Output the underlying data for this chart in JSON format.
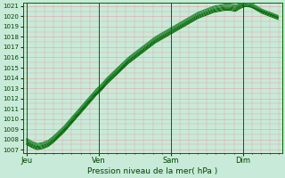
{
  "bg_color": "#c8ead8",
  "grid_color": "#e8a0a8",
  "line_color": "#006600",
  "line_color2": "#228833",
  "ylabel_color": "#004400",
  "xlabel_color": "#004400",
  "xlabel": "Pression niveau de la mer( hPa )",
  "yticks": [
    1007,
    1008,
    1009,
    1010,
    1011,
    1012,
    1013,
    1014,
    1015,
    1016,
    1017,
    1018,
    1019,
    1020,
    1021
  ],
  "ylim": [
    1006.7,
    1021.3
  ],
  "xtick_labels": [
    "Jeu",
    "Ven",
    "Sam",
    "Dim"
  ],
  "xtick_positions": [
    0,
    96,
    192,
    288
  ],
  "xlim": [
    -5,
    340
  ],
  "day_vlines": [
    0,
    96,
    192,
    288
  ],
  "lines": [
    [
      1007.8,
      1007.5,
      1007.3,
      1007.4,
      1007.6,
      1008.0,
      1008.5,
      1009.0,
      1009.6,
      1010.2,
      1010.8,
      1011.4,
      1012.0,
      1012.6,
      1013.1,
      1013.7,
      1014.2,
      1014.7,
      1015.2,
      1015.7,
      1016.1,
      1016.5,
      1016.9,
      1017.3,
      1017.7,
      1018.0,
      1018.3,
      1018.6,
      1018.9,
      1019.2,
      1019.5,
      1019.8,
      1020.1,
      1020.3,
      1020.5,
      1020.7,
      1020.8,
      1020.9,
      1020.9,
      1020.8,
      1021.1,
      1021.2,
      1021.1,
      1020.8,
      1020.5,
      1020.3,
      1020.1,
      1019.9
    ],
    [
      1007.9,
      1007.6,
      1007.4,
      1007.5,
      1007.7,
      1008.1,
      1008.6,
      1009.1,
      1009.7,
      1010.3,
      1010.9,
      1011.5,
      1012.1,
      1012.7,
      1013.2,
      1013.8,
      1014.3,
      1014.8,
      1015.3,
      1015.8,
      1016.2,
      1016.6,
      1017.0,
      1017.4,
      1017.8,
      1018.1,
      1018.4,
      1018.7,
      1019.0,
      1019.3,
      1019.6,
      1019.9,
      1020.2,
      1020.4,
      1020.6,
      1020.8,
      1020.9,
      1021.0,
      1021.0,
      1020.9,
      1021.2,
      1021.3,
      1021.2,
      1020.9,
      1020.6,
      1020.4,
      1020.2,
      1020.0
    ],
    [
      1007.7,
      1007.4,
      1007.2,
      1007.3,
      1007.5,
      1007.9,
      1008.4,
      1008.9,
      1009.5,
      1010.1,
      1010.7,
      1011.3,
      1011.9,
      1012.5,
      1013.0,
      1013.6,
      1014.1,
      1014.6,
      1015.1,
      1015.6,
      1016.0,
      1016.4,
      1016.8,
      1017.2,
      1017.6,
      1017.9,
      1018.2,
      1018.5,
      1018.8,
      1019.1,
      1019.4,
      1019.7,
      1020.0,
      1020.2,
      1020.4,
      1020.6,
      1020.7,
      1020.8,
      1020.8,
      1020.7,
      1021.0,
      1021.1,
      1021.0,
      1020.7,
      1020.4,
      1020.2,
      1020.0,
      1019.8
    ],
    [
      1008.0,
      1007.7,
      1007.5,
      1007.6,
      1007.8,
      1008.2,
      1008.7,
      1009.2,
      1009.8,
      1010.4,
      1011.0,
      1011.6,
      1012.2,
      1012.8,
      1013.3,
      1013.9,
      1014.4,
      1014.9,
      1015.4,
      1015.9,
      1016.3,
      1016.7,
      1017.1,
      1017.5,
      1017.9,
      1018.2,
      1018.5,
      1018.8,
      1019.1,
      1019.4,
      1019.7,
      1020.0,
      1020.3,
      1020.5,
      1020.7,
      1020.9,
      1021.0,
      1021.1,
      1021.1,
      1021.0,
      1021.3,
      1021.4,
      1021.3,
      1021.0,
      1020.7,
      1020.5,
      1020.3,
      1020.1
    ],
    [
      1007.6,
      1007.3,
      1007.1,
      1007.2,
      1007.4,
      1007.8,
      1008.3,
      1008.8,
      1009.4,
      1010.0,
      1010.6,
      1011.2,
      1011.8,
      1012.4,
      1012.9,
      1013.5,
      1014.0,
      1014.5,
      1015.0,
      1015.5,
      1015.9,
      1016.3,
      1016.7,
      1017.1,
      1017.5,
      1017.8,
      1018.1,
      1018.4,
      1018.7,
      1019.0,
      1019.3,
      1019.6,
      1019.9,
      1020.1,
      1020.3,
      1020.5,
      1020.6,
      1020.7,
      1020.7,
      1020.6,
      1020.9,
      1021.0,
      1020.9,
      1020.6,
      1020.3,
      1020.1,
      1019.9,
      1019.7
    ],
    [
      1008.1,
      1007.8,
      1007.6,
      1007.7,
      1007.9,
      1008.3,
      1008.8,
      1009.3,
      1009.9,
      1010.5,
      1011.1,
      1011.7,
      1012.3,
      1012.9,
      1013.4,
      1014.0,
      1014.5,
      1015.0,
      1015.5,
      1016.0,
      1016.4,
      1016.8,
      1017.2,
      1017.6,
      1018.0,
      1018.3,
      1018.6,
      1018.9,
      1019.2,
      1019.5,
      1019.8,
      1020.1,
      1020.4,
      1020.6,
      1020.8,
      1021.0,
      1021.1,
      1021.2,
      1021.2,
      1021.1,
      1021.2,
      1021.1,
      1021.0,
      1020.8,
      1020.6,
      1020.4,
      1020.2,
      1020.0
    ],
    [
      1007.5,
      1007.2,
      1007.0,
      1007.1,
      1007.3,
      1007.7,
      1008.2,
      1008.7,
      1009.3,
      1009.9,
      1010.5,
      1011.1,
      1011.7,
      1012.3,
      1012.8,
      1013.4,
      1013.9,
      1014.4,
      1014.9,
      1015.4,
      1015.8,
      1016.2,
      1016.6,
      1017.0,
      1017.4,
      1017.7,
      1018.0,
      1018.3,
      1018.6,
      1018.9,
      1019.2,
      1019.5,
      1019.8,
      1020.0,
      1020.2,
      1020.4,
      1020.5,
      1020.6,
      1020.6,
      1020.5,
      1020.8,
      1021.0,
      1020.9,
      1020.7,
      1020.5,
      1020.3,
      1020.1,
      1019.9
    ]
  ]
}
